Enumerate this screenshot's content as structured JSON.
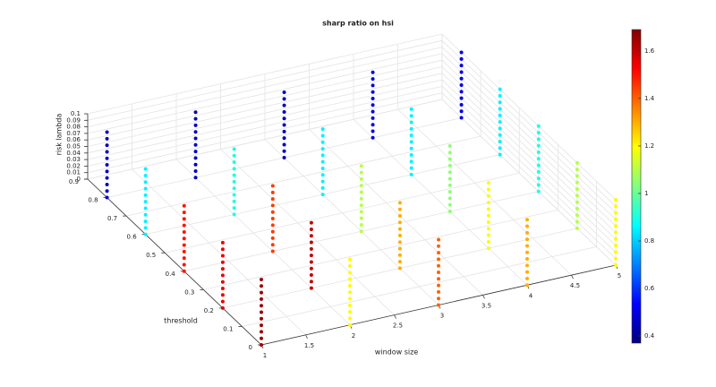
{
  "chart_data": {
    "type": "scatter3d",
    "title": "sharp ratio on hsi",
    "xlabel": "window size",
    "ylabel": "threshold",
    "zlabel": "risk lambda",
    "windows": [
      1,
      2,
      3,
      4,
      5
    ],
    "thresholds": [
      0,
      0.2,
      0.4,
      0.6,
      0.8
    ],
    "lambdas": [
      0,
      0.01,
      0.02,
      0.03,
      0.04,
      0.05,
      0.06,
      0.07,
      0.08,
      0.09,
      0.1
    ],
    "sharp": [
      [
        1.65,
        1.55,
        1.5,
        0.85,
        0.45
      ],
      [
        1.2,
        1.6,
        1.45,
        0.9,
        0.45
      ],
      [
        1.4,
        1.3,
        1.1,
        0.85,
        0.45
      ],
      [
        1.3,
        1.2,
        1.05,
        0.85,
        0.5
      ],
      [
        1.2,
        1.1,
        0.9,
        0.85,
        0.5
      ]
    ],
    "xlim": [
      1,
      5
    ],
    "xticks": [
      1,
      1.5,
      2,
      2.5,
      3,
      3.5,
      4,
      4.5,
      5
    ],
    "ylim": [
      0,
      0.9
    ],
    "yticks": [
      0,
      0.1,
      0.2,
      0.3,
      0.4,
      0.5,
      0.6,
      0.7,
      0.8,
      0.9
    ],
    "zlim": [
      0,
      0.1
    ],
    "zticks": [
      0,
      0.01,
      0.02,
      0.03,
      0.04,
      0.05,
      0.06,
      0.07,
      0.08,
      0.09,
      0.1
    ],
    "clim": [
      0.37,
      1.69
    ],
    "cticks": [
      0.4,
      0.6,
      0.8,
      1,
      1.2,
      1.4,
      1.6
    ],
    "colormap": "jet",
    "grid": true
  }
}
